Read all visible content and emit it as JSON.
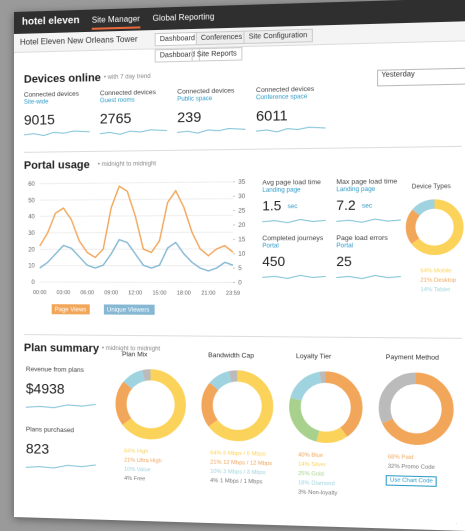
{
  "nav": {
    "brand": "hotel eleven",
    "tabs": [
      "Site Manager",
      "Global Reporting"
    ]
  },
  "site": {
    "name": "Hotel Eleven New Orleans Tower",
    "tabs": [
      "Dashboard",
      "Conferences",
      "Site Configuration"
    ],
    "subtabs": [
      "Dashboard",
      "Site Reports"
    ]
  },
  "devices": {
    "title": "Devices online",
    "note": "• with 7 day trend",
    "period": "Yesterday",
    "cards": [
      {
        "label": "Connected devices",
        "sub": "Site-wide",
        "value": 9015
      },
      {
        "label": "Connected devices",
        "sub": "Guest rooms",
        "value": 2765
      },
      {
        "label": "Connected devices",
        "sub": "Public space",
        "value": 239
      },
      {
        "label": "Connected devices",
        "sub": "Conference space",
        "value": 6011
      }
    ]
  },
  "portal": {
    "title": "Portal usage",
    "note": "• midnight to midnight",
    "chart": {
      "type": "line",
      "x": [
        "00:00",
        null,
        null,
        "03:00",
        null,
        null,
        "06:00",
        null,
        null,
        "09:00",
        null,
        null,
        "12:00",
        null,
        null,
        "15:00",
        null,
        null,
        "18:00",
        null,
        null,
        "21:00",
        null,
        null,
        "23:59"
      ],
      "ylim": [
        0,
        60
      ],
      "yticks": [
        0,
        10,
        20,
        30,
        40,
        50,
        60
      ],
      "y2lim": [
        0,
        35
      ],
      "y2ticks": [
        0,
        5,
        10,
        15,
        20,
        25,
        30,
        35
      ],
      "grid": true,
      "series": [
        {
          "name": "Page Views",
          "color": "#f2a65a",
          "values": [
            22,
            30,
            42,
            45,
            38,
            25,
            18,
            15,
            20,
            45,
            58,
            55,
            40,
            20,
            18,
            25,
            48,
            55,
            45,
            30,
            20,
            16,
            20,
            22,
            18
          ]
        },
        {
          "name": "Unique Viewers",
          "color": "#86b8d4",
          "axis": "y2",
          "values": [
            5,
            7,
            10,
            13,
            12,
            9,
            6,
            5,
            6,
            10,
            15,
            14,
            10,
            6,
            5,
            6,
            12,
            14,
            10,
            7,
            5,
            4,
            5,
            7,
            6
          ]
        }
      ]
    },
    "metrics": [
      {
        "label": "Avg page load time",
        "sub": "Landing page",
        "value": 1.5,
        "unit": "sec"
      },
      {
        "label": "Max page load time",
        "sub": "Landing page",
        "value": 7.2,
        "unit": "sec"
      },
      {
        "label": "Completed journeys",
        "sub": "Portal",
        "value": 450
      },
      {
        "label": "Page load errors",
        "sub": "Portal",
        "value": 25
      }
    ],
    "device_types": {
      "title": "Device Types",
      "segments": [
        {
          "value": 64,
          "label": "64% Mobile",
          "color": "#fcd35a"
        },
        {
          "value": 21,
          "label": "21% Desktop",
          "color": "#f2a65a"
        },
        {
          "value": 14,
          "label": "14% Tablet",
          "color": "#9fd3e0"
        }
      ]
    }
  },
  "plans": {
    "title": "Plan summary",
    "note": "• midnight to midnight",
    "cards": [
      {
        "label": "Revenue from plans",
        "value": "$4938"
      },
      {
        "label": "Plans purchased",
        "value": 823
      }
    ],
    "donuts": [
      {
        "title": "Plan Mix",
        "segments": [
          {
            "value": 64,
            "label": "64% High",
            "color": "#fcd35a"
          },
          {
            "value": 21,
            "label": "21% Ultra High",
            "color": "#f2a65a"
          },
          {
            "value": 10,
            "label": "10% Value",
            "color": "#9fd3e0"
          },
          {
            "value": 4,
            "label": "4% Free",
            "color": "#bbbbbb"
          }
        ]
      },
      {
        "title": "Bandwidth Cap",
        "segments": [
          {
            "value": 64,
            "label": "64% 6 Mbps / 6 Mbps",
            "color": "#fcd35a"
          },
          {
            "value": 21,
            "label": "21% 12 Mbps / 12 Mbps",
            "color": "#f2a65a"
          },
          {
            "value": 10,
            "label": "10% 3 Mbps / 3 Mbps",
            "color": "#9fd3e0"
          },
          {
            "value": 4,
            "label": "4% 1 Mbps / 1 Mbps",
            "color": "#bbbbbb"
          }
        ]
      },
      {
        "title": "Loyalty Tier",
        "segments": [
          {
            "value": 40,
            "label": "40% Blue",
            "color": "#f2a65a"
          },
          {
            "value": 14,
            "label": "14% Silver",
            "color": "#fcd35a"
          },
          {
            "value": 25,
            "label": "25% Gold",
            "color": "#a9d18e"
          },
          {
            "value": 18,
            "label": "18% Diamond",
            "color": "#9fd3e0"
          },
          {
            "value": 3,
            "label": "3% Non-loyalty",
            "color": "#bbbbbb"
          }
        ]
      },
      {
        "title": "Payment Method",
        "segments": [
          {
            "value": 68,
            "label": "68% Paid",
            "color": "#f2a65a"
          },
          {
            "value": 32,
            "label": "32% Promo Code",
            "color": "#bbbbbb"
          }
        ]
      }
    ],
    "button": "Use Chart Code"
  }
}
